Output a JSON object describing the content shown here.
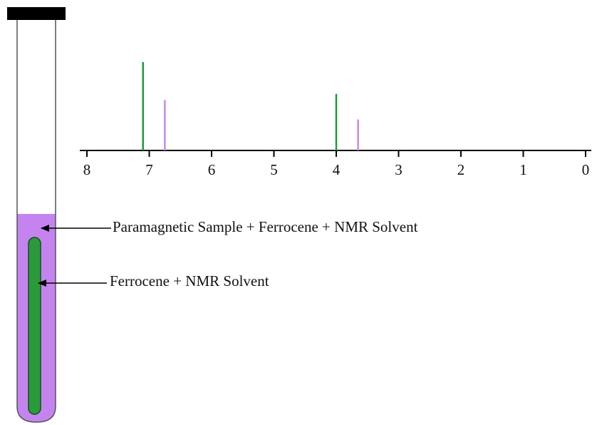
{
  "chart_data": {
    "type": "stem",
    "xlim": [
      8,
      0
    ],
    "xticks": [
      8,
      7,
      6,
      5,
      4,
      3,
      2,
      1,
      0
    ],
    "series": [
      {
        "color": "#1f9a3c",
        "x": [
          7.1,
          4.0
        ],
        "values": [
          1.0,
          0.64
        ]
      },
      {
        "color": "#c58ae8",
        "x": [
          6.75,
          3.65
        ],
        "values": [
          0.57,
          0.35
        ]
      }
    ],
    "annotations": [
      "Paramagnetic Sample + Ferrocene + NMR Solvent",
      "Ferrocene + NMR Solvent"
    ]
  }
}
